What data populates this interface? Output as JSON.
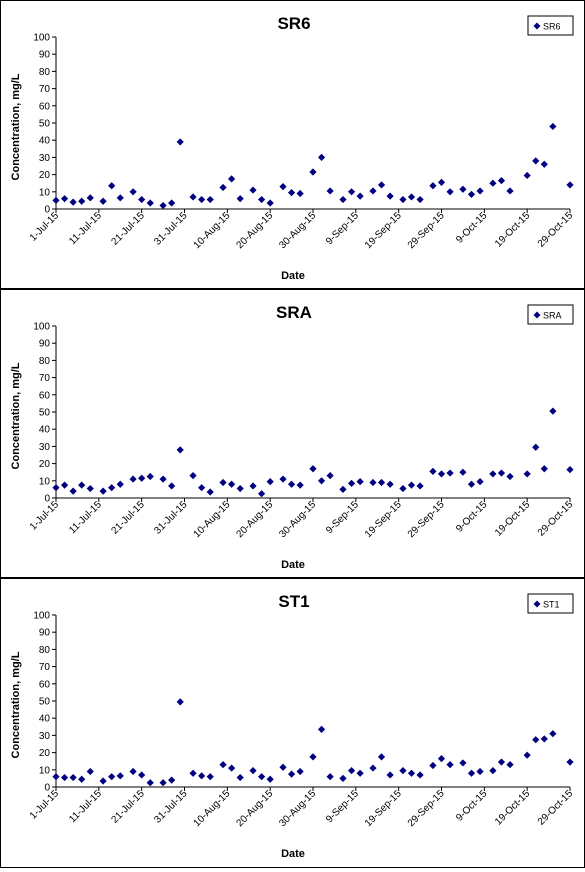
{
  "x_ticks": [
    "1-Jul-15",
    "11-Jul-15",
    "21-Jul-15",
    "31-Jul-15",
    "10-Aug-15",
    "20-Aug-15",
    "30-Aug-15",
    "9-Sep-15",
    "19-Sep-15",
    "29-Sep-15",
    "9-Oct-15",
    "19-Oct-15",
    "29-Oct-15"
  ],
  "chart_data": [
    {
      "type": "scatter",
      "title": "SR6",
      "xlabel": "Date",
      "ylabel": "Concentration, mg/L",
      "xlim": [
        "2015-07-01",
        "2015-10-29"
      ],
      "ylim": [
        0,
        100
      ],
      "y_ticks": [
        0,
        10,
        20,
        30,
        40,
        50,
        60,
        70,
        80,
        90,
        100
      ],
      "grid": false,
      "legend_position": "top-right",
      "marker_color": "#000080",
      "series": [
        {
          "name": "SR6",
          "points": [
            [
              "2015-07-01",
              5
            ],
            [
              "2015-07-03",
              6
            ],
            [
              "2015-07-05",
              4
            ],
            [
              "2015-07-07",
              4.5
            ],
            [
              "2015-07-09",
              6.5
            ],
            [
              "2015-07-12",
              4.5
            ],
            [
              "2015-07-14",
              13.5
            ],
            [
              "2015-07-16",
              6.5
            ],
            [
              "2015-07-19",
              10
            ],
            [
              "2015-07-21",
              5.5
            ],
            [
              "2015-07-23",
              3.5
            ],
            [
              "2015-07-26",
              2
            ],
            [
              "2015-07-28",
              3.5
            ],
            [
              "2015-07-30",
              39
            ],
            [
              "2015-08-02",
              7
            ],
            [
              "2015-08-04",
              5.5
            ],
            [
              "2015-08-06",
              5.5
            ],
            [
              "2015-08-09",
              12.5
            ],
            [
              "2015-08-11",
              17.5
            ],
            [
              "2015-08-13",
              6
            ],
            [
              "2015-08-16",
              11
            ],
            [
              "2015-08-18",
              5.5
            ],
            [
              "2015-08-20",
              3.5
            ],
            [
              "2015-08-23",
              13
            ],
            [
              "2015-08-25",
              9.5
            ],
            [
              "2015-08-27",
              9
            ],
            [
              "2015-08-30",
              21.5
            ],
            [
              "2015-09-01",
              30
            ],
            [
              "2015-09-03",
              10.5
            ],
            [
              "2015-09-06",
              5.5
            ],
            [
              "2015-09-08",
              10
            ],
            [
              "2015-09-10",
              7.5
            ],
            [
              "2015-09-13",
              10.5
            ],
            [
              "2015-09-15",
              14
            ],
            [
              "2015-09-17",
              7.5
            ],
            [
              "2015-09-20",
              5.5
            ],
            [
              "2015-09-22",
              7
            ],
            [
              "2015-09-24",
              5.5
            ],
            [
              "2015-09-27",
              13.5
            ],
            [
              "2015-09-29",
              15.5
            ],
            [
              "2015-10-01",
              10
            ],
            [
              "2015-10-04",
              11.5
            ],
            [
              "2015-10-06",
              8.5
            ],
            [
              "2015-10-08",
              10.5
            ],
            [
              "2015-10-11",
              15
            ],
            [
              "2015-10-13",
              16.5
            ],
            [
              "2015-10-15",
              10.5
            ],
            [
              "2015-10-19",
              19.5
            ],
            [
              "2015-10-21",
              28
            ],
            [
              "2015-10-23",
              26
            ],
            [
              "2015-10-25",
              48
            ],
            [
              "2015-10-29",
              14
            ]
          ]
        }
      ]
    },
    {
      "type": "scatter",
      "title": "SRA",
      "xlabel": "Date",
      "ylabel": "Concentration, mg/L",
      "xlim": [
        "2015-07-01",
        "2015-10-29"
      ],
      "ylim": [
        0,
        100
      ],
      "y_ticks": [
        0,
        10,
        20,
        30,
        40,
        50,
        60,
        70,
        80,
        90,
        100
      ],
      "grid": false,
      "legend_position": "top-right",
      "marker_color": "#000080",
      "series": [
        {
          "name": "SRA",
          "points": [
            [
              "2015-07-01",
              6
            ],
            [
              "2015-07-03",
              7.5
            ],
            [
              "2015-07-05",
              4
            ],
            [
              "2015-07-07",
              7.5
            ],
            [
              "2015-07-09",
              5.5
            ],
            [
              "2015-07-12",
              4
            ],
            [
              "2015-07-14",
              6
            ],
            [
              "2015-07-16",
              8
            ],
            [
              "2015-07-19",
              11
            ],
            [
              "2015-07-21",
              11.5
            ],
            [
              "2015-07-23",
              12.5
            ],
            [
              "2015-07-26",
              11
            ],
            [
              "2015-07-28",
              7
            ],
            [
              "2015-07-30",
              28
            ],
            [
              "2015-08-02",
              13
            ],
            [
              "2015-08-04",
              6
            ],
            [
              "2015-08-06",
              3.5
            ],
            [
              "2015-08-09",
              9
            ],
            [
              "2015-08-11",
              8
            ],
            [
              "2015-08-13",
              5.5
            ],
            [
              "2015-08-16",
              7
            ],
            [
              "2015-08-18",
              2.5
            ],
            [
              "2015-08-20",
              9.5
            ],
            [
              "2015-08-23",
              11
            ],
            [
              "2015-08-25",
              8
            ],
            [
              "2015-08-27",
              7.5
            ],
            [
              "2015-08-30",
              17
            ],
            [
              "2015-09-01",
              10
            ],
            [
              "2015-09-03",
              13
            ],
            [
              "2015-09-06",
              5
            ],
            [
              "2015-09-08",
              8.5
            ],
            [
              "2015-09-10",
              9.5
            ],
            [
              "2015-09-13",
              9
            ],
            [
              "2015-09-15",
              9
            ],
            [
              "2015-09-17",
              8
            ],
            [
              "2015-09-20",
              5.5
            ],
            [
              "2015-09-22",
              7.5
            ],
            [
              "2015-09-24",
              7
            ],
            [
              "2015-09-27",
              15.5
            ],
            [
              "2015-09-29",
              14
            ],
            [
              "2015-10-01",
              14.5
            ],
            [
              "2015-10-04",
              15
            ],
            [
              "2015-10-06",
              8
            ],
            [
              "2015-10-08",
              9.5
            ],
            [
              "2015-10-11",
              14
            ],
            [
              "2015-10-13",
              14.5
            ],
            [
              "2015-10-15",
              12.5
            ],
            [
              "2015-10-19",
              14
            ],
            [
              "2015-10-21",
              29.5
            ],
            [
              "2015-10-23",
              17
            ],
            [
              "2015-10-25",
              50.5
            ],
            [
              "2015-10-29",
              16.5
            ]
          ]
        }
      ]
    },
    {
      "type": "scatter",
      "title": "ST1",
      "xlabel": "Date",
      "ylabel": "Concentration, mg/L",
      "xlim": [
        "2015-07-01",
        "2015-10-29"
      ],
      "ylim": [
        0,
        100
      ],
      "y_ticks": [
        0,
        10,
        20,
        30,
        40,
        50,
        60,
        70,
        80,
        90,
        100
      ],
      "grid": false,
      "legend_position": "top-right",
      "marker_color": "#000080",
      "series": [
        {
          "name": "ST1",
          "points": [
            [
              "2015-07-01",
              6
            ],
            [
              "2015-07-03",
              5.5
            ],
            [
              "2015-07-05",
              5.5
            ],
            [
              "2015-07-07",
              4.5
            ],
            [
              "2015-07-09",
              9
            ],
            [
              "2015-07-12",
              3.5
            ],
            [
              "2015-07-14",
              6
            ],
            [
              "2015-07-16",
              6.5
            ],
            [
              "2015-07-19",
              9
            ],
            [
              "2015-07-21",
              7
            ],
            [
              "2015-07-23",
              2.5
            ],
            [
              "2015-07-26",
              2.5
            ],
            [
              "2015-07-28",
              4
            ],
            [
              "2015-07-30",
              49.5
            ],
            [
              "2015-08-02",
              8
            ],
            [
              "2015-08-04",
              6.5
            ],
            [
              "2015-08-06",
              6
            ],
            [
              "2015-08-09",
              13
            ],
            [
              "2015-08-11",
              11
            ],
            [
              "2015-08-13",
              5.5
            ],
            [
              "2015-08-16",
              9.5
            ],
            [
              "2015-08-18",
              6
            ],
            [
              "2015-08-20",
              4.5
            ],
            [
              "2015-08-23",
              11.5
            ],
            [
              "2015-08-25",
              7.5
            ],
            [
              "2015-08-27",
              9
            ],
            [
              "2015-08-30",
              17.5
            ],
            [
              "2015-09-01",
              33.5
            ],
            [
              "2015-09-03",
              6
            ],
            [
              "2015-09-06",
              5
            ],
            [
              "2015-09-08",
              9.5
            ],
            [
              "2015-09-10",
              8
            ],
            [
              "2015-09-13",
              11
            ],
            [
              "2015-09-15",
              17.5
            ],
            [
              "2015-09-17",
              7
            ],
            [
              "2015-09-20",
              9.5
            ],
            [
              "2015-09-22",
              8
            ],
            [
              "2015-09-24",
              7
            ],
            [
              "2015-09-27",
              12.5
            ],
            [
              "2015-09-29",
              16.5
            ],
            [
              "2015-10-01",
              13
            ],
            [
              "2015-10-04",
              14
            ],
            [
              "2015-10-06",
              8
            ],
            [
              "2015-10-08",
              9
            ],
            [
              "2015-10-11",
              9.5
            ],
            [
              "2015-10-13",
              14.5
            ],
            [
              "2015-10-15",
              13
            ],
            [
              "2015-10-19",
              18.5
            ],
            [
              "2015-10-21",
              27.5
            ],
            [
              "2015-10-23",
              28
            ],
            [
              "2015-10-25",
              31
            ],
            [
              "2015-10-29",
              14.5
            ]
          ]
        }
      ]
    }
  ]
}
